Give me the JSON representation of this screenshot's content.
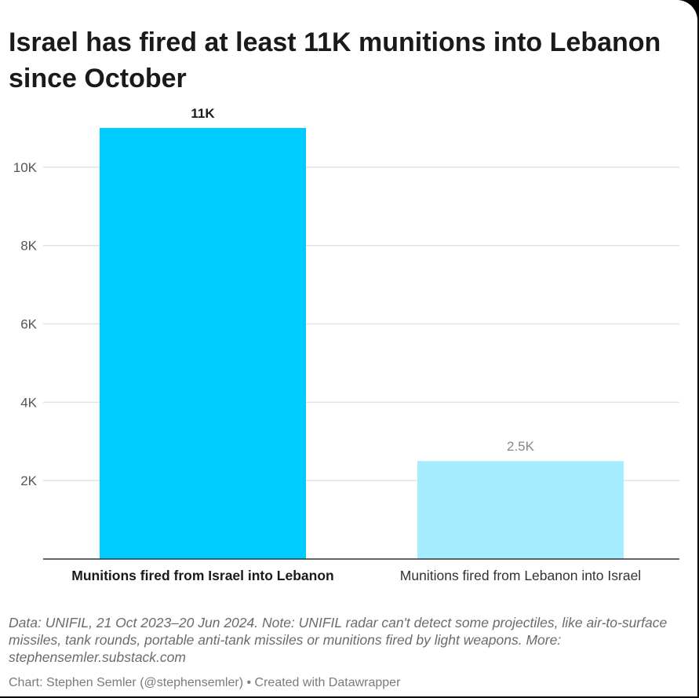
{
  "chart_data": {
    "type": "bar",
    "title": "Israel has fired at least 11K munitions into Lebanon since October",
    "categories": [
      "Munitions fired from Israel into Lebanon",
      "Munitions fired from Lebanon into Israel"
    ],
    "values": [
      11000,
      2500
    ],
    "value_labels": [
      "11K",
      "2.5K"
    ],
    "bar_colors": [
      "#00ccff",
      "#a6ecff"
    ],
    "y_ticks": [
      2000,
      4000,
      6000,
      8000,
      10000
    ],
    "y_tick_labels": [
      "2K",
      "4K",
      "6K",
      "8K",
      "10K"
    ],
    "ylim": [
      0,
      11000
    ],
    "xlabel": "",
    "ylabel": "",
    "grid": true
  },
  "footer": {
    "note": "Data: UNIFIL, 21 Oct 2023–20 Jun 2024. Note: UNIFIL radar can't detect some projectiles, like air-to-surface missiles, tank rounds, portable anti-tank missiles or munitions fired by light weapons. More: stephensemler.substack.com",
    "credit": "Chart: Stephen Semler (@stephensemler) • Created with Datawrapper"
  }
}
